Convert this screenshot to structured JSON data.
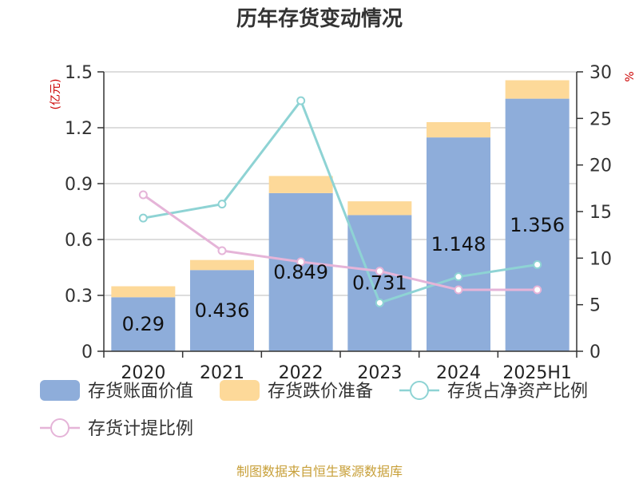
{
  "chart_data": {
    "type": "bar",
    "title": "历年存货变动情况",
    "categories": [
      "2020",
      "2021",
      "2022",
      "2023",
      "2024",
      "2025H1"
    ],
    "left_axis": {
      "unit_label": "(亿元)",
      "ylim": [
        0,
        1.5
      ],
      "ticks": [
        "0",
        "0.3",
        "0.6",
        "0.9",
        "1.2",
        "1.5"
      ]
    },
    "right_axis": {
      "unit_label": "%",
      "ylim": [
        0,
        30
      ],
      "ticks": [
        "0",
        "5",
        "10",
        "15",
        "20",
        "25",
        "30"
      ]
    },
    "series": [
      {
        "name": "存货账面价值",
        "type": "bar",
        "axis": "left",
        "color": "#8EADDA",
        "values": [
          0.29,
          0.436,
          0.849,
          0.731,
          1.148,
          1.356
        ],
        "labels": [
          "0.29",
          "0.436",
          "0.849",
          "0.731",
          "1.148",
          "1.356"
        ]
      },
      {
        "name": "存货跌价准备",
        "type": "bar-stacked",
        "axis": "left",
        "color": "#FDD999",
        "values": [
          0.059,
          0.054,
          0.092,
          0.074,
          0.082,
          0.099
        ]
      },
      {
        "name": "存货占净资产比例",
        "type": "line",
        "axis": "right",
        "color": "#8ED3D4",
        "values": [
          14.3,
          15.8,
          26.9,
          5.2,
          8.0,
          9.3
        ]
      },
      {
        "name": "存货计提比例",
        "type": "line",
        "axis": "right",
        "color": "#E5B4D8",
        "values": [
          16.8,
          10.8,
          9.6,
          8.6,
          6.6,
          6.6
        ]
      }
    ],
    "gridlines": true,
    "legend_position": "bottom"
  },
  "source_text": "制图数据来自恒生聚源数据库"
}
